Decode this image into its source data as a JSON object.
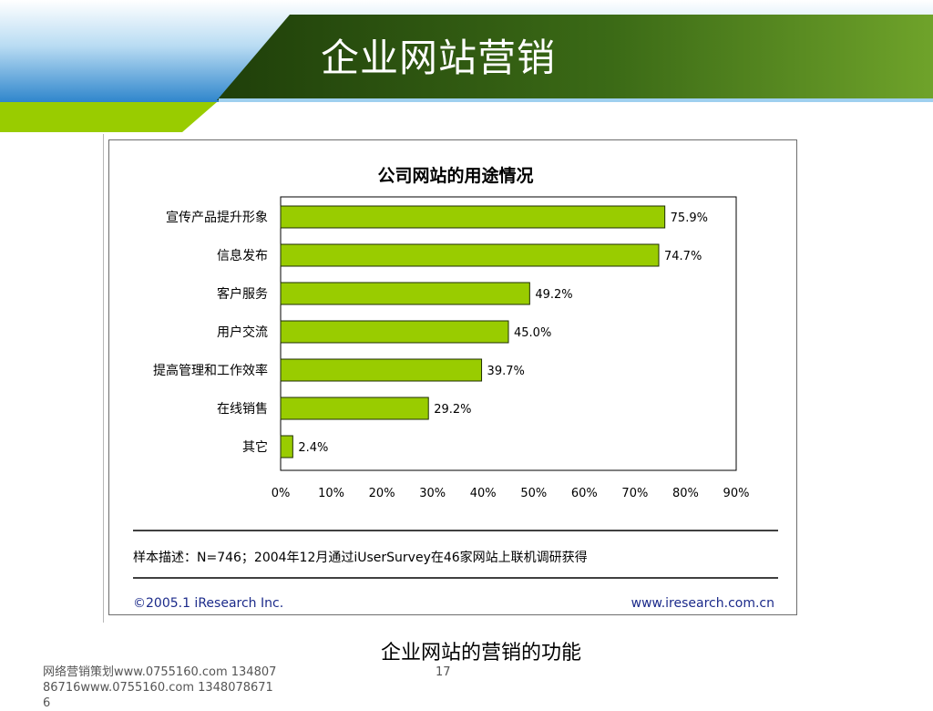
{
  "slide": {
    "title": "企业网站营销",
    "caption": "企业网站的营销的功能",
    "footer": "网络营销策划www.0755160.com 13480786716www.0755160.com 13480786716",
    "page_number": "17"
  },
  "colors": {
    "banner_green_dark": "#2f5a12",
    "banner_green_light": "#6fa32a",
    "banner_blue": "#3d8fd0",
    "banner_lime": "#99cc00",
    "bar_fill": "#99cc00",
    "bar_stroke": "#1e2e00"
  },
  "chart_data": {
    "type": "bar",
    "orientation": "horizontal",
    "title": "公司网站的用途情况",
    "categories": [
      "宣传产品提升形象",
      "信息发布",
      "客户服务",
      "用户交流",
      "提高管理和工作效率",
      "在线销售",
      "其它"
    ],
    "values": [
      75.9,
      74.7,
      49.2,
      45.0,
      39.7,
      29.2,
      2.4
    ],
    "data_labels": [
      "75.9%",
      "74.7%",
      "49.2%",
      "45.0%",
      "39.7%",
      "29.2%",
      "2.4%"
    ],
    "x_ticks": [
      "0%",
      "10%",
      "20%",
      "30%",
      "40%",
      "50%",
      "60%",
      "70%",
      "80%",
      "90%"
    ],
    "xlim": [
      0,
      90
    ],
    "grid": false,
    "sample_note": "样本描述：N=746；2004年12月通过iUserSurvey在46家网站上联机调研获得",
    "copyright": "©2005.1 iResearch Inc.",
    "website": "www.iresearch.com.cn"
  }
}
